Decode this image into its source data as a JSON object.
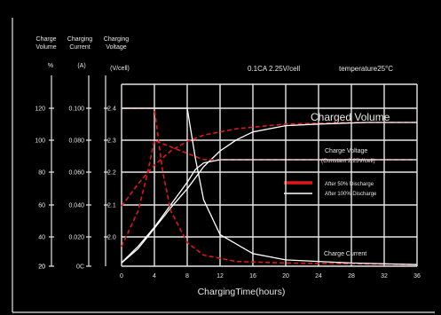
{
  "chart_data": {
    "type": "line",
    "title": "0.1CA 2.25V/cell",
    "temperature": "temperature25°C",
    "xlabel": "ChargingTime(hours)",
    "x_ticks": [
      "0",
      "4",
      "8",
      "12",
      "16",
      "20",
      "24",
      "28",
      "32",
      "36"
    ],
    "xlim": [
      0,
      36
    ],
    "axes": {
      "volume": {
        "header": [
          "Charge",
          "Volume"
        ],
        "unit": "%",
        "ticks": [
          "120",
          "100",
          "80",
          "60",
          "40",
          "20",
          "20"
        ],
        "range": [
          20,
          120
        ]
      },
      "current": {
        "header": [
          "Charging",
          "Current"
        ],
        "unit": "(A)",
        "ticks": [
          "0.100",
          "0.080",
          "0.060",
          "0.040",
          "0.020",
          "0C"
        ],
        "range": [
          0,
          0.1
        ]
      },
      "voltage": {
        "header": [
          "Charging",
          "Voltage"
        ],
        "unit": "(V/cell)",
        "ticks": [
          "2.4",
          "2.3",
          "2.2",
          "2.1",
          "2.0"
        ],
        "range": [
          1.9,
          2.4
        ]
      }
    },
    "annotations": {
      "charged_volume": "Charged Volume",
      "charge_voltage": [
        "Charge Voltage",
        "(Constant 2.25V/cell)"
      ],
      "charge_current": "Charge Current"
    },
    "legend": {
      "position": "center-right",
      "entries": [
        {
          "label": "After 50% Discharge",
          "color": "#e01818",
          "style": "dashed"
        },
        {
          "label": "After 100% Discharge",
          "color": "#ffffff",
          "style": "solid"
        }
      ]
    },
    "colors": {
      "after_50": "#e01818",
      "after_100": "#ffffff",
      "grid": "#e6e6e6",
      "axis": "#e6e6e6",
      "background": "#000000"
    },
    "series": [
      {
        "name": "After 50% Discharge",
        "axis": "volume",
        "color": "#e01818",
        "style": "dashed",
        "points": [
          [
            0,
            58
          ],
          [
            2,
            72
          ],
          [
            4,
            84
          ],
          [
            6,
            93
          ],
          [
            8,
            99
          ],
          [
            10,
            103
          ],
          [
            14,
            107
          ],
          [
            20,
            110
          ],
          [
            28,
            111
          ],
          [
            36,
            111
          ]
        ]
      },
      {
        "name": "After 100% Discharge",
        "axis": "volume",
        "color": "#ffffff",
        "style": "solid",
        "points": [
          [
            0,
            22
          ],
          [
            2,
            31
          ],
          [
            4,
            44
          ],
          [
            6,
            57
          ],
          [
            8,
            69
          ],
          [
            10,
            83
          ],
          [
            12,
            93
          ],
          [
            14,
            100
          ],
          [
            16,
            105
          ],
          [
            20,
            109
          ],
          [
            24,
            110
          ],
          [
            30,
            111
          ],
          [
            36,
            111
          ]
        ]
      },
      {
        "name": "After 50% Discharge",
        "axis": "voltage",
        "color": "#e01818",
        "style": "dashed",
        "points": [
          [
            0,
            1.97
          ],
          [
            2,
            2.08
          ],
          [
            3,
            2.18
          ],
          [
            4,
            2.3
          ],
          [
            6,
            2.28
          ],
          [
            8,
            2.26
          ],
          [
            10,
            2.24
          ],
          [
            14,
            2.24
          ],
          [
            20,
            2.24
          ],
          [
            36,
            2.24
          ]
        ]
      },
      {
        "name": "After 100% Discharge",
        "axis": "voltage",
        "color": "#ffffff",
        "style": "solid",
        "points": [
          [
            0,
            1.92
          ],
          [
            2,
            1.97
          ],
          [
            4,
            2.03
          ],
          [
            6,
            2.1
          ],
          [
            8,
            2.17
          ],
          [
            9,
            2.21
          ],
          [
            10,
            2.23
          ],
          [
            12,
            2.24
          ],
          [
            20,
            2.24
          ],
          [
            36,
            2.24
          ]
        ]
      },
      {
        "name": "After 50% Discharge",
        "axis": "current",
        "color": "#e01818",
        "style": "dashed",
        "points": [
          [
            0,
            0.1
          ],
          [
            4,
            0.1
          ],
          [
            5,
            0.06
          ],
          [
            6,
            0.035
          ],
          [
            8,
            0.015
          ],
          [
            10,
            0.007
          ],
          [
            14,
            0.003
          ],
          [
            20,
            0.002
          ],
          [
            36,
            0.001
          ]
        ]
      },
      {
        "name": "After 100% Discharge",
        "axis": "current",
        "color": "#ffffff",
        "style": "solid",
        "points": [
          [
            0,
            0.1
          ],
          [
            8,
            0.1
          ],
          [
            9,
            0.068
          ],
          [
            10,
            0.042
          ],
          [
            12,
            0.02
          ],
          [
            16,
            0.008
          ],
          [
            20,
            0.004
          ],
          [
            28,
            0.002
          ],
          [
            36,
            0.001
          ]
        ]
      }
    ]
  }
}
